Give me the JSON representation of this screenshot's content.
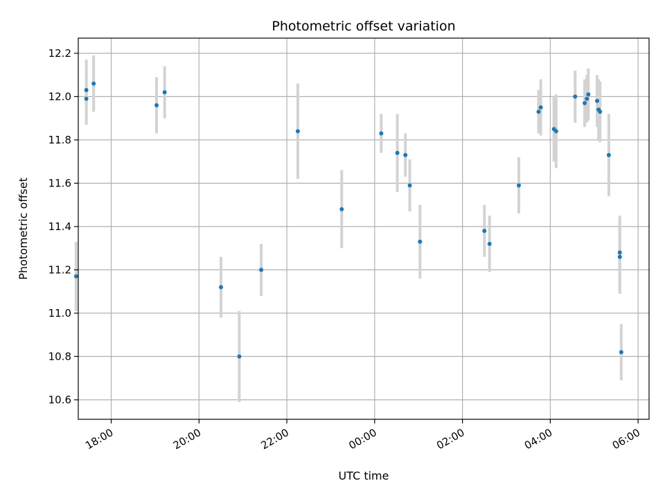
{
  "chart_data": {
    "type": "scatter",
    "title": "Photometric offset variation",
    "xlabel": "UTC time",
    "ylabel": "Photometric offset",
    "grid": true,
    "x_ticks": [
      "18:00",
      "20:00",
      "22:00",
      "00:00",
      "02:00",
      "04:00",
      "06:00"
    ],
    "y_ticks": [
      "10.6",
      "10.8",
      "11.0",
      "11.2",
      "11.4",
      "11.6",
      "11.8",
      "12.0",
      "12.2"
    ],
    "x_range": [
      "17:15",
      "06:15"
    ],
    "ylim": [
      10.51,
      12.27
    ],
    "colors": {
      "point": "#1f77b4",
      "errorbar": "#d3d3d3",
      "grid": "#b0b0b0"
    },
    "points": [
      {
        "x": "17:12",
        "y": 11.17,
        "err": 0.16
      },
      {
        "x": "17:26",
        "y": 11.99,
        "err": 0.12
      },
      {
        "x": "17:26",
        "y": 12.03,
        "err": 0.14
      },
      {
        "x": "17:36",
        "y": 12.06,
        "err": 0.13
      },
      {
        "x": "19:02",
        "y": 11.96,
        "err": 0.13
      },
      {
        "x": "19:13",
        "y": 12.02,
        "err": 0.12
      },
      {
        "x": "20:30",
        "y": 11.12,
        "err": 0.14
      },
      {
        "x": "20:55",
        "y": 10.8,
        "err": 0.21
      },
      {
        "x": "21:25",
        "y": 11.2,
        "err": 0.12
      },
      {
        "x": "22:15",
        "y": 11.84,
        "err": 0.22
      },
      {
        "x": "23:15",
        "y": 11.48,
        "err": 0.18
      },
      {
        "x": "00:09",
        "y": 11.83,
        "err": 0.09
      },
      {
        "x": "00:31",
        "y": 11.74,
        "err": 0.18
      },
      {
        "x": "00:42",
        "y": 11.73,
        "err": 0.1
      },
      {
        "x": "00:48",
        "y": 11.59,
        "err": 0.12
      },
      {
        "x": "01:02",
        "y": 11.33,
        "err": 0.17
      },
      {
        "x": "02:30",
        "y": 11.38,
        "err": 0.12
      },
      {
        "x": "02:37",
        "y": 11.32,
        "err": 0.13
      },
      {
        "x": "03:17",
        "y": 11.59,
        "err": 0.13
      },
      {
        "x": "03:44",
        "y": 11.93,
        "err": 0.1
      },
      {
        "x": "03:47",
        "y": 11.95,
        "err": 0.13
      },
      {
        "x": "04:05",
        "y": 11.85,
        "err": 0.15
      },
      {
        "x": "04:08",
        "y": 11.84,
        "err": 0.17
      },
      {
        "x": "04:34",
        "y": 12.0,
        "err": 0.12
      },
      {
        "x": "04:47",
        "y": 11.97,
        "err": 0.11
      },
      {
        "x": "04:50",
        "y": 11.99,
        "err": 0.11
      },
      {
        "x": "04:52",
        "y": 12.01,
        "err": 0.12
      },
      {
        "x": "05:04",
        "y": 11.98,
        "err": 0.12
      },
      {
        "x": "05:06",
        "y": 11.94,
        "err": 0.14
      },
      {
        "x": "05:08",
        "y": 11.93,
        "err": 0.14
      },
      {
        "x": "05:20",
        "y": 11.73,
        "err": 0.19
      },
      {
        "x": "05:35",
        "y": 11.28,
        "err": 0.17
      },
      {
        "x": "05:35",
        "y": 11.26,
        "err": 0.17
      },
      {
        "x": "05:37",
        "y": 10.82,
        "err": 0.13
      }
    ]
  }
}
